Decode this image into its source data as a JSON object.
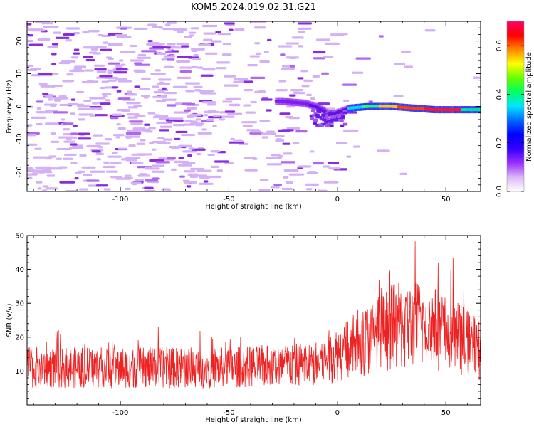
{
  "title": "KOM5.2024.019.02.31.G21",
  "chart_data": [
    {
      "type": "heatmap",
      "xlabel": "Height of straight line (km)",
      "ylabel": "Frequency (Hz)",
      "xlim": [
        -143,
        66
      ],
      "ylim": [
        -26,
        26
      ],
      "x_ticks": [
        -100,
        -50,
        0,
        50
      ],
      "x_tick_labels": [
        "-100",
        "-50",
        "0",
        "50"
      ],
      "y_ticks": [
        -20,
        -10,
        0,
        10,
        20
      ],
      "y_tick_labels": [
        "-20",
        "-10",
        "0",
        "10",
        "20"
      ],
      "colorbar": {
        "label": "Normalized spectral amplitude",
        "range": [
          0,
          0.7
        ],
        "ticks": [
          0,
          0.2,
          0.4,
          0.6
        ],
        "tick_labels": [
          "0.0",
          "0.2",
          "0.4",
          "0.6"
        ],
        "colors": [
          "#ffffff",
          "#d9b8f5",
          "#9b30ff",
          "#3300ff",
          "#0000ff",
          "#0066ff",
          "#00e5ff",
          "#00ff66",
          "#66ff00",
          "#ffff00",
          "#ff8800",
          "#ff0000",
          "#ff0066"
        ]
      },
      "ridge_trace": [
        {
          "x": -25,
          "y": 1.5
        },
        {
          "x": -15,
          "y": 1.0
        },
        {
          "x": -8,
          "y": -0.5
        },
        {
          "x": -4,
          "y": -2.5
        },
        {
          "x": 0,
          "y": -2.0
        },
        {
          "x": 6,
          "y": -0.5
        },
        {
          "x": 15,
          "y": 0.0
        },
        {
          "x": 25,
          "y": 0.0
        },
        {
          "x": 35,
          "y": -0.5
        },
        {
          "x": 45,
          "y": -1.0
        },
        {
          "x": 55,
          "y": -1.0
        },
        {
          "x": 66,
          "y": -1.0
        }
      ],
      "grid": false
    },
    {
      "type": "line",
      "xlabel": "Height of straight line (km)",
      "ylabel": "SNR (v/v)",
      "xlim": [
        -143,
        66
      ],
      "ylim": [
        0,
        50
      ],
      "x_ticks": [
        -100,
        -50,
        0,
        50
      ],
      "x_tick_labels": [
        "-100",
        "-50",
        "0",
        "50"
      ],
      "y_ticks": [
        10,
        20,
        30,
        40,
        50
      ],
      "y_tick_labels": [
        "10",
        "20",
        "30",
        "40",
        "50"
      ],
      "line_color": "#ee2222",
      "baseline_profile": [
        {
          "x": -143,
          "y": 11
        },
        {
          "x": -100,
          "y": 11
        },
        {
          "x": -50,
          "y": 11
        },
        {
          "x": -10,
          "y": 12
        },
        {
          "x": 0,
          "y": 15
        },
        {
          "x": 10,
          "y": 18
        },
        {
          "x": 25,
          "y": 23
        },
        {
          "x": 40,
          "y": 24
        },
        {
          "x": 55,
          "y": 20
        },
        {
          "x": 66,
          "y": 16
        }
      ],
      "grid": false
    }
  ]
}
